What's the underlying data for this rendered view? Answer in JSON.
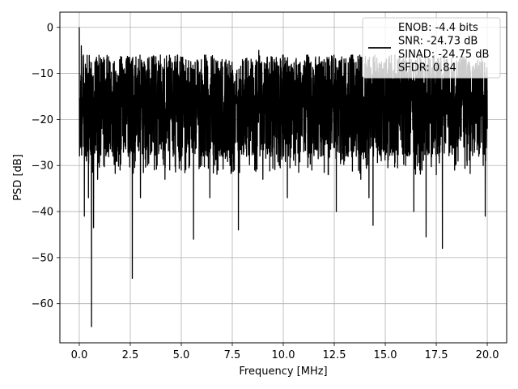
{
  "chart_data": {
    "type": "line",
    "title": "",
    "xlabel": "Frequency [MHz]",
    "ylabel": "PSD [dB]",
    "xlim": [
      -0.95,
      20.95
    ],
    "ylim": [
      -68.5,
      3.3
    ],
    "xticks": [
      0.0,
      2.5,
      5.0,
      7.5,
      10.0,
      12.5,
      15.0,
      17.5,
      20.0
    ],
    "xtick_labels": [
      "0.0",
      "2.5",
      "5.0",
      "7.5",
      "10.0",
      "12.5",
      "15.0",
      "17.5",
      "20.0"
    ],
    "yticks": [
      0,
      -10,
      -20,
      -30,
      -40,
      -50,
      -60
    ],
    "ytick_labels": [
      "0",
      "−10",
      "−20",
      "−30",
      "−40",
      "−50",
      "−60"
    ],
    "grid": true,
    "legend_position": "top-right",
    "legend": [
      "ENOB: -4.4 bits",
      "SNR: -24.73 dB",
      "SINAD: -24.75 dB",
      "SFDR: 0.84"
    ],
    "series": [
      {
        "color": "#000000",
        "x_range": [
          0,
          20
        ],
        "points": [
          [
            0.0,
            0
          ],
          [
            0.05,
            -18
          ],
          [
            0.1,
            -4
          ],
          [
            0.15,
            -21
          ],
          [
            0.2,
            -6
          ],
          [
            0.25,
            -41
          ],
          [
            0.3,
            -8
          ],
          [
            0.35,
            -29
          ],
          [
            0.4,
            -12
          ],
          [
            0.45,
            -37
          ],
          [
            0.5,
            -14
          ],
          [
            0.55,
            -27
          ],
          [
            0.6,
            -65
          ],
          [
            0.65,
            -20
          ],
          [
            0.7,
            -43.5
          ],
          [
            0.8,
            -15
          ],
          [
            0.9,
            -33
          ],
          [
            1.0,
            -12
          ],
          [
            1.2,
            -30
          ],
          [
            1.4,
            -10
          ],
          [
            1.6,
            -27
          ],
          [
            1.8,
            -11
          ],
          [
            2.0,
            -31
          ],
          [
            2.2,
            -9
          ],
          [
            2.4,
            -28
          ],
          [
            2.6,
            -54.5
          ],
          [
            2.8,
            -11
          ],
          [
            3.0,
            -37
          ],
          [
            3.2,
            -8
          ],
          [
            3.4,
            -28
          ],
          [
            3.6,
            -10
          ],
          [
            3.8,
            -30
          ],
          [
            4.0,
            -8
          ],
          [
            4.2,
            -33
          ],
          [
            4.4,
            -9
          ],
          [
            4.6,
            -28
          ],
          [
            4.8,
            -7
          ],
          [
            5.0,
            -31
          ],
          [
            5.2,
            -10
          ],
          [
            5.4,
            -27
          ],
          [
            5.6,
            -46
          ],
          [
            5.8,
            -8
          ],
          [
            6.0,
            -30
          ],
          [
            6.2,
            -6
          ],
          [
            6.4,
            -37
          ],
          [
            6.6,
            -9
          ],
          [
            6.8,
            -31
          ],
          [
            7.0,
            -7
          ],
          [
            7.2,
            -28
          ],
          [
            7.4,
            -11
          ],
          [
            7.6,
            -31
          ],
          [
            7.8,
            -44
          ],
          [
            8.0,
            -7
          ],
          [
            8.2,
            -28
          ],
          [
            8.4,
            -9
          ],
          [
            8.6,
            -31
          ],
          [
            8.8,
            -5
          ],
          [
            9.0,
            -33
          ],
          [
            9.2,
            -8
          ],
          [
            9.4,
            -28
          ],
          [
            9.6,
            -9
          ],
          [
            9.8,
            -30
          ],
          [
            10.0,
            -6
          ],
          [
            10.2,
            -37
          ],
          [
            10.4,
            -8
          ],
          [
            10.6,
            -30
          ],
          [
            10.8,
            -10
          ],
          [
            11.0,
            -27
          ],
          [
            11.2,
            -6
          ],
          [
            11.4,
            -31
          ],
          [
            11.6,
            -8
          ],
          [
            11.8,
            -26
          ],
          [
            12.0,
            -7
          ],
          [
            12.2,
            -32
          ],
          [
            12.4,
            -9
          ],
          [
            12.6,
            -40
          ],
          [
            12.8,
            -8
          ],
          [
            13.0,
            -29
          ],
          [
            13.4,
            -6
          ],
          [
            13.8,
            -33
          ],
          [
            14.0,
            -8
          ],
          [
            14.2,
            -37
          ],
          [
            14.4,
            -43
          ],
          [
            14.6,
            -8
          ],
          [
            14.8,
            -29
          ],
          [
            15.0,
            -9
          ],
          [
            15.4,
            -27
          ],
          [
            15.6,
            -7
          ],
          [
            16.0,
            -30
          ],
          [
            16.2,
            -7
          ],
          [
            16.4,
            -40
          ],
          [
            16.6,
            -9
          ],
          [
            16.8,
            -31
          ],
          [
            17.0,
            -45.5
          ],
          [
            17.2,
            -7
          ],
          [
            17.5,
            -32
          ],
          [
            17.8,
            -48
          ],
          [
            18.0,
            -7
          ],
          [
            18.4,
            -31
          ],
          [
            18.6,
            -8
          ],
          [
            19.0,
            -29
          ],
          [
            19.4,
            -9
          ],
          [
            19.8,
            -30
          ],
          [
            19.9,
            -41
          ],
          [
            20.0,
            -22
          ]
        ]
      }
    ]
  }
}
